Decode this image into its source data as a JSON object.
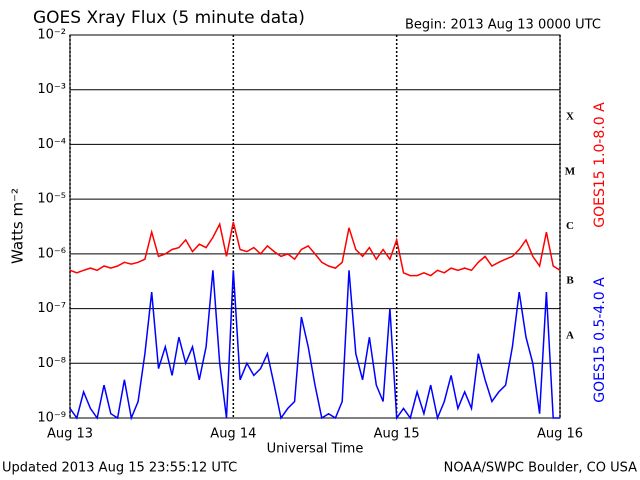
{
  "chart_data": {
    "type": "line",
    "title": "GOES Xray Flux (5 minute data)",
    "subtitle": "Begin:  2013 Aug 13 0000 UTC",
    "ylabel": "Watts m⁻²",
    "xlabel": "Universal Time",
    "footer_left": "Updated 2013 Aug 15 23:55:12 UTC",
    "footer_right": "NOAA/SWPC Boulder, CO USA",
    "log_y": true,
    "grid": true,
    "xlim": [
      0,
      72
    ],
    "xticks": [
      {
        "value": 0,
        "label": "Aug 13"
      },
      {
        "value": 24,
        "label": "Aug 14"
      },
      {
        "value": 48,
        "label": "Aug 15"
      },
      {
        "value": 72,
        "label": "Aug 16"
      }
    ],
    "ylim": [
      1e-09,
      0.01
    ],
    "yticks": [
      {
        "value": 1e-09,
        "label": "10⁻⁹"
      },
      {
        "value": 1e-08,
        "label": "10⁻⁸"
      },
      {
        "value": 1e-07,
        "label": "10⁻⁷"
      },
      {
        "value": 1e-06,
        "label": "10⁻⁶"
      },
      {
        "value": 1e-05,
        "label": "10⁻⁵"
      },
      {
        "value": 0.0001,
        "label": "10⁻⁴"
      },
      {
        "value": 0.001,
        "label": "10⁻³"
      },
      {
        "value": 0.01,
        "label": "10⁻²"
      }
    ],
    "classes": [
      {
        "value": 0.0001,
        "label": "X"
      },
      {
        "value": 1e-05,
        "label": "M"
      },
      {
        "value": 1e-06,
        "label": "C"
      },
      {
        "value": 1e-07,
        "label": "B"
      },
      {
        "value": 1e-08,
        "label": "A"
      }
    ],
    "x": [
      0,
      1,
      2,
      3,
      4,
      5,
      6,
      7,
      8,
      9,
      10,
      11,
      12,
      13,
      14,
      15,
      16,
      17,
      18,
      19,
      20,
      21,
      22,
      23,
      24,
      25,
      26,
      27,
      28,
      29,
      30,
      31,
      32,
      33,
      34,
      35,
      36,
      37,
      38,
      39,
      40,
      41,
      42,
      43,
      44,
      45,
      46,
      47,
      48,
      49,
      50,
      51,
      52,
      53,
      54,
      55,
      56,
      57,
      58,
      59,
      60,
      61,
      62,
      63,
      64,
      65,
      66,
      67,
      68,
      69,
      70,
      71,
      72
    ],
    "series": [
      {
        "name": "GOES15 1.0-8.0 A",
        "color": "#ff0000",
        "values": [
          5e-07,
          4.5e-07,
          5e-07,
          5.5e-07,
          5e-07,
          6e-07,
          5.5e-07,
          6e-07,
          7e-07,
          6.5e-07,
          7e-07,
          8e-07,
          2.5e-06,
          9e-07,
          1e-06,
          1.2e-06,
          1.3e-06,
          1.8e-06,
          1.1e-06,
          1.5e-06,
          1.3e-06,
          2e-06,
          3.5e-06,
          9e-07,
          3.8e-06,
          1.2e-06,
          1.1e-06,
          1.3e-06,
          1e-06,
          1.4e-06,
          1.1e-06,
          9e-07,
          1e-06,
          8e-07,
          1.2e-06,
          1.4e-06,
          1e-06,
          7e-07,
          6e-07,
          5.5e-07,
          7e-07,
          3e-06,
          1.2e-06,
          9e-07,
          1.3e-06,
          8e-07,
          1.2e-06,
          8e-07,
          1.8e-06,
          4.5e-07,
          4e-07,
          4e-07,
          4.5e-07,
          4e-07,
          5e-07,
          4.5e-07,
          5.5e-07,
          5e-07,
          5.5e-07,
          5e-07,
          7e-07,
          9e-07,
          6e-07,
          7e-07,
          8e-07,
          9e-07,
          1.2e-06,
          1.8e-06,
          9e-07,
          6e-07,
          2.5e-06,
          6e-07,
          5e-07
        ]
      },
      {
        "name": "GOES15 0.5-4.0 A",
        "color": "#0000ff",
        "values": [
          1.5e-09,
          1e-09,
          3e-09,
          1.5e-09,
          1e-09,
          4e-09,
          1.2e-09,
          1e-09,
          5e-09,
          1e-09,
          2e-09,
          1.5e-08,
          2e-07,
          8e-09,
          2e-08,
          6e-09,
          3e-08,
          1e-08,
          2e-08,
          5e-09,
          2e-08,
          5e-07,
          1e-08,
          1e-09,
          5e-07,
          5e-09,
          1e-08,
          6e-09,
          8e-09,
          1.5e-08,
          4e-09,
          1e-09,
          1.5e-09,
          2e-09,
          7e-08,
          2e-08,
          4e-09,
          1e-09,
          1.2e-09,
          1e-09,
          2e-09,
          5e-07,
          1.5e-08,
          5e-09,
          3e-08,
          4e-09,
          2e-09,
          1e-07,
          1e-09,
          1.5e-09,
          1e-09,
          3e-09,
          1.2e-09,
          4e-09,
          1e-09,
          2e-09,
          6e-09,
          1.5e-09,
          3e-09,
          1.5e-09,
          1.5e-08,
          5e-09,
          2e-09,
          3e-09,
          4e-09,
          2e-08,
          2e-07,
          3e-08,
          1e-08,
          1.2e-09,
          2e-07,
          1e-09,
          1e-09
        ]
      }
    ]
  }
}
